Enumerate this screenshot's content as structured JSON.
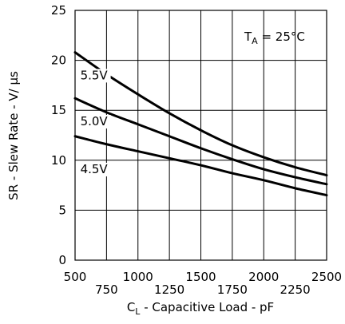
{
  "chart_data": {
    "type": "line",
    "xlabel_main": "C",
    "xlabel_sub": "L",
    "xlabel_rest": " - Capacitive Load - pF",
    "ylabel": "SR - Slew Rate - V/ µs",
    "annotation_main": "T",
    "annotation_sub": "A",
    "annotation_rest": " = 25°C",
    "xlim": [
      500,
      2500
    ],
    "ylim": [
      0,
      25
    ],
    "x_ticks_upper": [
      "500",
      "1000",
      "1500",
      "2000",
      "2500"
    ],
    "x_ticks_lower": [
      "750",
      "1250",
      "1750",
      "2250"
    ],
    "y_ticks": [
      "0",
      "5",
      "10",
      "15",
      "20",
      "25"
    ],
    "grid": true,
    "x": [
      500,
      750,
      1000,
      1250,
      1500,
      1750,
      2000,
      2250,
      2500
    ],
    "series": [
      {
        "name": "5.5V",
        "values": [
          20.8,
          18.6,
          16.6,
          14.7,
          13.0,
          11.5,
          10.3,
          9.3,
          8.5
        ]
      },
      {
        "name": "5.0V",
        "values": [
          16.2,
          14.8,
          13.6,
          12.4,
          11.2,
          10.1,
          9.1,
          8.3,
          7.6
        ]
      },
      {
        "name": "4.5V",
        "values": [
          12.4,
          11.6,
          10.9,
          10.2,
          9.5,
          8.7,
          8.0,
          7.2,
          6.5
        ]
      }
    ]
  }
}
